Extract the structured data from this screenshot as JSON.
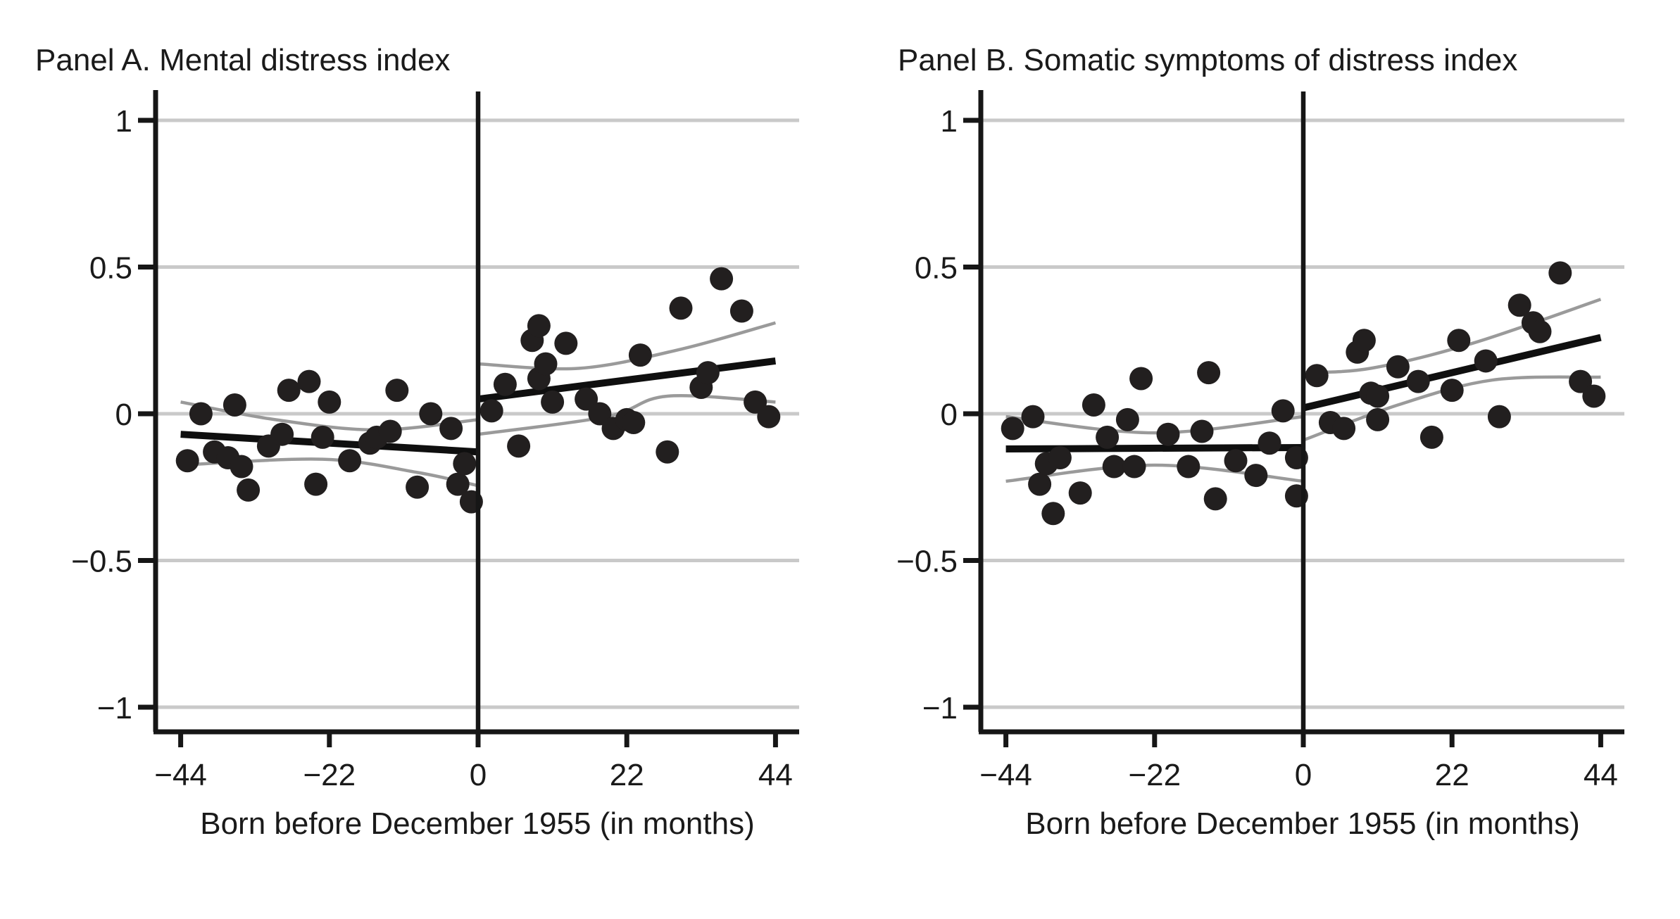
{
  "style": {
    "background": "#ffffff",
    "text_color": "#1a1a1a",
    "dot_color": "#221f1f",
    "fit_color": "#0f0f0f",
    "ci_color": "#9a9a9a",
    "grid_color": "#c9c9c9",
    "axis_color": "#161616",
    "cutoff_color": "#161616"
  },
  "chart_data": [
    {
      "id": "panel-a",
      "type": "scatter",
      "title": "Panel A. Mental distress index",
      "xlabel": "Born before December 1955 (in months)",
      "ylabel": "",
      "xlim": [
        -48,
        47
      ],
      "ylim": [
        -1.1,
        1.1
      ],
      "grid": "horizontal",
      "legend": "none",
      "cutoff_x": 0,
      "xticks": [
        {
          "v": -44,
          "label": "−44"
        },
        {
          "v": -22,
          "label": "−22"
        },
        {
          "v": 0,
          "label": "0"
        },
        {
          "v": 22,
          "label": "22"
        },
        {
          "v": 44,
          "label": "44"
        }
      ],
      "yticks": [
        {
          "v": 1,
          "label": "1"
        },
        {
          "v": 0.5,
          "label": "0.5"
        },
        {
          "v": 0,
          "label": "0"
        },
        {
          "v": -0.5,
          "label": "−0.5"
        },
        {
          "v": -1,
          "label": "−1"
        }
      ],
      "points": [
        [
          -43,
          -0.16
        ],
        [
          -41,
          0.0
        ],
        [
          -39,
          -0.13
        ],
        [
          -37,
          -0.15
        ],
        [
          -36,
          0.03
        ],
        [
          -35,
          -0.18
        ],
        [
          -34,
          -0.26
        ],
        [
          -31,
          -0.11
        ],
        [
          -29,
          -0.07
        ],
        [
          -28,
          0.08
        ],
        [
          -25,
          0.11
        ],
        [
          -24,
          -0.24
        ],
        [
          -23,
          -0.08
        ],
        [
          -22,
          0.04
        ],
        [
          -19,
          -0.16
        ],
        [
          -16,
          -0.1
        ],
        [
          -15,
          -0.08
        ],
        [
          -13,
          -0.06
        ],
        [
          -12,
          0.08
        ],
        [
          -9,
          -0.25
        ],
        [
          -7,
          0.0
        ],
        [
          -4,
          -0.05
        ],
        [
          -3,
          -0.24
        ],
        [
          -2,
          -0.17
        ],
        [
          -1,
          -0.3
        ],
        [
          2,
          0.01
        ],
        [
          4,
          0.1
        ],
        [
          6,
          -0.11
        ],
        [
          8,
          0.25
        ],
        [
          9,
          0.3
        ],
        [
          9,
          0.12
        ],
        [
          10,
          0.17
        ],
        [
          11,
          0.04
        ],
        [
          13,
          0.24
        ],
        [
          16,
          0.05
        ],
        [
          18,
          0.0
        ],
        [
          20,
          -0.05
        ],
        [
          22,
          -0.02
        ],
        [
          23,
          -0.03
        ],
        [
          24,
          0.2
        ],
        [
          28,
          -0.13
        ],
        [
          30,
          0.36
        ],
        [
          33,
          0.09
        ],
        [
          34,
          0.14
        ],
        [
          36,
          0.46
        ],
        [
          39,
          0.35
        ],
        [
          41,
          0.04
        ],
        [
          43,
          -0.01
        ]
      ],
      "fit_left": [
        [
          -44,
          -0.07
        ],
        [
          0,
          -0.13
        ]
      ],
      "fit_right": [
        [
          0,
          0.05
        ],
        [
          44,
          0.18
        ]
      ],
      "ci_left_upper": [
        [
          -44,
          0.04
        ],
        [
          -30,
          -0.02
        ],
        [
          -15,
          -0.055
        ],
        [
          0,
          -0.02
        ]
      ],
      "ci_left_lower": [
        [
          -44,
          -0.175
        ],
        [
          -23,
          -0.155
        ],
        [
          -9,
          -0.2
        ],
        [
          0,
          -0.245
        ]
      ],
      "ci_right_upper": [
        [
          0,
          0.17
        ],
        [
          15,
          0.155
        ],
        [
          30,
          0.22
        ],
        [
          44,
          0.31
        ]
      ],
      "ci_right_lower": [
        [
          0,
          -0.07
        ],
        [
          19,
          -0.01
        ],
        [
          28,
          0.06
        ],
        [
          44,
          0.04
        ]
      ]
    },
    {
      "id": "panel-b",
      "type": "scatter",
      "title": "Panel B. Somatic symptoms of distress index",
      "xlabel": "Born before December 1955 (in months)",
      "ylabel": "",
      "xlim": [
        -48,
        47
      ],
      "ylim": [
        -1.1,
        1.1
      ],
      "grid": "horizontal",
      "legend": "none",
      "cutoff_x": 0,
      "xticks": [
        {
          "v": -44,
          "label": "−44"
        },
        {
          "v": -22,
          "label": "−22"
        },
        {
          "v": 0,
          "label": "0"
        },
        {
          "v": 22,
          "label": "22"
        },
        {
          "v": 44,
          "label": "44"
        }
      ],
      "yticks": [
        {
          "v": 1,
          "label": "1"
        },
        {
          "v": 0.5,
          "label": "0.5"
        },
        {
          "v": 0,
          "label": "0"
        },
        {
          "v": -0.5,
          "label": "−0.5"
        },
        {
          "v": -1,
          "label": "−1"
        }
      ],
      "points": [
        [
          -43,
          -0.05
        ],
        [
          -40,
          -0.01
        ],
        [
          -39,
          -0.24
        ],
        [
          -38,
          -0.17
        ],
        [
          -37,
          -0.34
        ],
        [
          -36,
          -0.15
        ],
        [
          -33,
          -0.27
        ],
        [
          -31,
          0.03
        ],
        [
          -29,
          -0.08
        ],
        [
          -28,
          -0.18
        ],
        [
          -26,
          -0.02
        ],
        [
          -25,
          -0.18
        ],
        [
          -24,
          0.12
        ],
        [
          -20,
          -0.07
        ],
        [
          -17,
          -0.18
        ],
        [
          -15,
          -0.06
        ],
        [
          -14,
          0.14
        ],
        [
          -13,
          -0.29
        ],
        [
          -10,
          -0.16
        ],
        [
          -7,
          -0.21
        ],
        [
          -5,
          -0.1
        ],
        [
          -3,
          0.01
        ],
        [
          -1,
          -0.15
        ],
        [
          -1,
          -0.28
        ],
        [
          2,
          0.13
        ],
        [
          4,
          -0.03
        ],
        [
          6,
          -0.05
        ],
        [
          8,
          0.21
        ],
        [
          9,
          0.25
        ],
        [
          10,
          0.07
        ],
        [
          11,
          0.06
        ],
        [
          11,
          -0.02
        ],
        [
          14,
          0.16
        ],
        [
          17,
          0.11
        ],
        [
          19,
          -0.08
        ],
        [
          22,
          0.08
        ],
        [
          23,
          0.25
        ],
        [
          27,
          0.18
        ],
        [
          29,
          -0.01
        ],
        [
          32,
          0.37
        ],
        [
          34,
          0.31
        ],
        [
          35,
          0.28
        ],
        [
          38,
          0.48
        ],
        [
          41,
          0.11
        ],
        [
          43,
          0.06
        ]
      ],
      "fit_left": [
        [
          -44,
          -0.12
        ],
        [
          0,
          -0.115
        ]
      ],
      "fit_right": [
        [
          0,
          0.02
        ],
        [
          44,
          0.26
        ]
      ],
      "ci_left_upper": [
        [
          -44,
          -0.01
        ],
        [
          -22,
          -0.065
        ],
        [
          0,
          -0.01
        ]
      ],
      "ci_left_lower": [
        [
          -44,
          -0.23
        ],
        [
          -22,
          -0.175
        ],
        [
          0,
          -0.23
        ]
      ],
      "ci_right_upper": [
        [
          0,
          0.14
        ],
        [
          10,
          0.155
        ],
        [
          25,
          0.24
        ],
        [
          44,
          0.39
        ]
      ],
      "ci_right_lower": [
        [
          0,
          -0.09
        ],
        [
          14,
          0.03
        ],
        [
          28,
          0.115
        ],
        [
          44,
          0.125
        ]
      ]
    }
  ]
}
